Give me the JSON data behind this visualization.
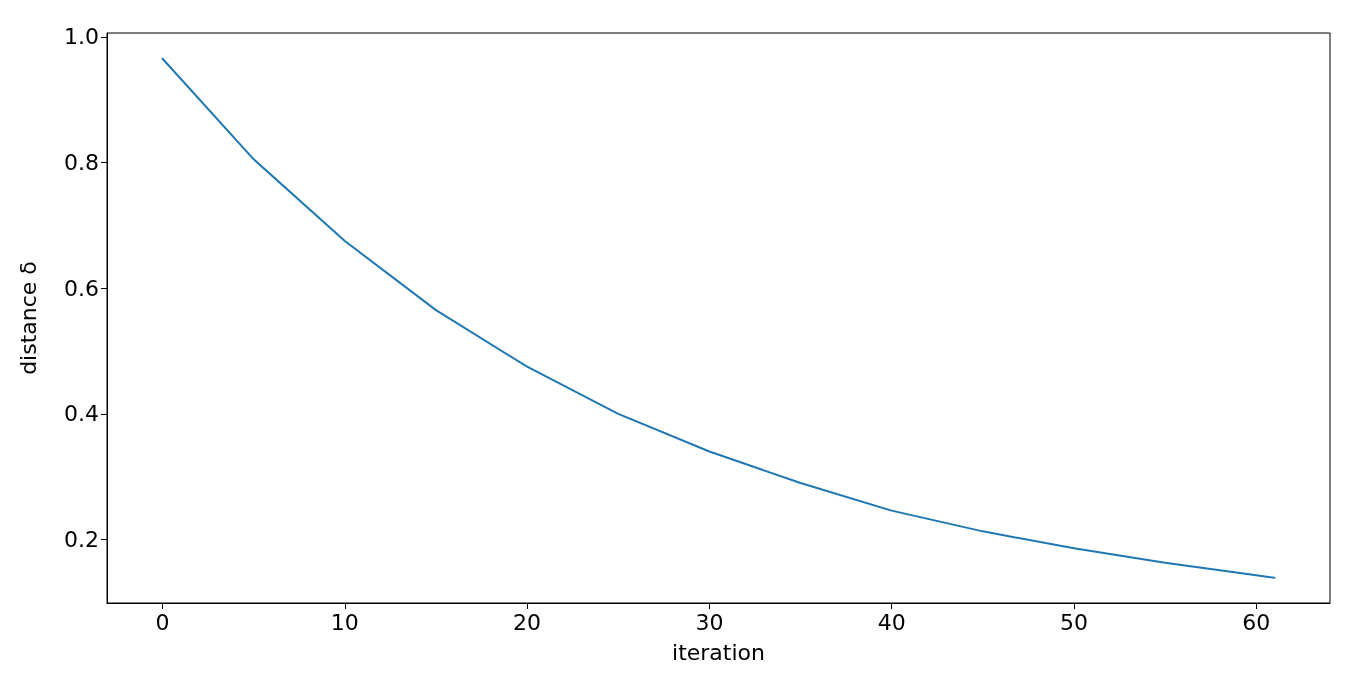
{
  "chart_data": {
    "type": "line",
    "xlabel": "iteration",
    "ylabel": "distance δ",
    "x": [
      0,
      5,
      10,
      15,
      20,
      25,
      30,
      35,
      40,
      45,
      50,
      55,
      60,
      61
    ],
    "series": [
      {
        "color": "#1f77b4",
        "values": [
          0.965,
          0.805,
          0.675,
          0.565,
          0.475,
          0.4,
          0.34,
          0.29,
          0.246,
          0.213,
          0.186,
          0.163,
          0.143,
          0.139
        ]
      }
    ],
    "xlim": [
      -3.05,
      64.05
    ],
    "ylim": [
      0.099,
      1.006
    ],
    "xticks": [
      0,
      10,
      20,
      30,
      40,
      50,
      60
    ],
    "yticks": [
      0.2,
      0.4,
      0.6,
      0.8,
      {
        "value": 1,
        "label": "1.0"
      }
    ],
    "grid": false,
    "marker": "none",
    "line_style": "solid"
  }
}
